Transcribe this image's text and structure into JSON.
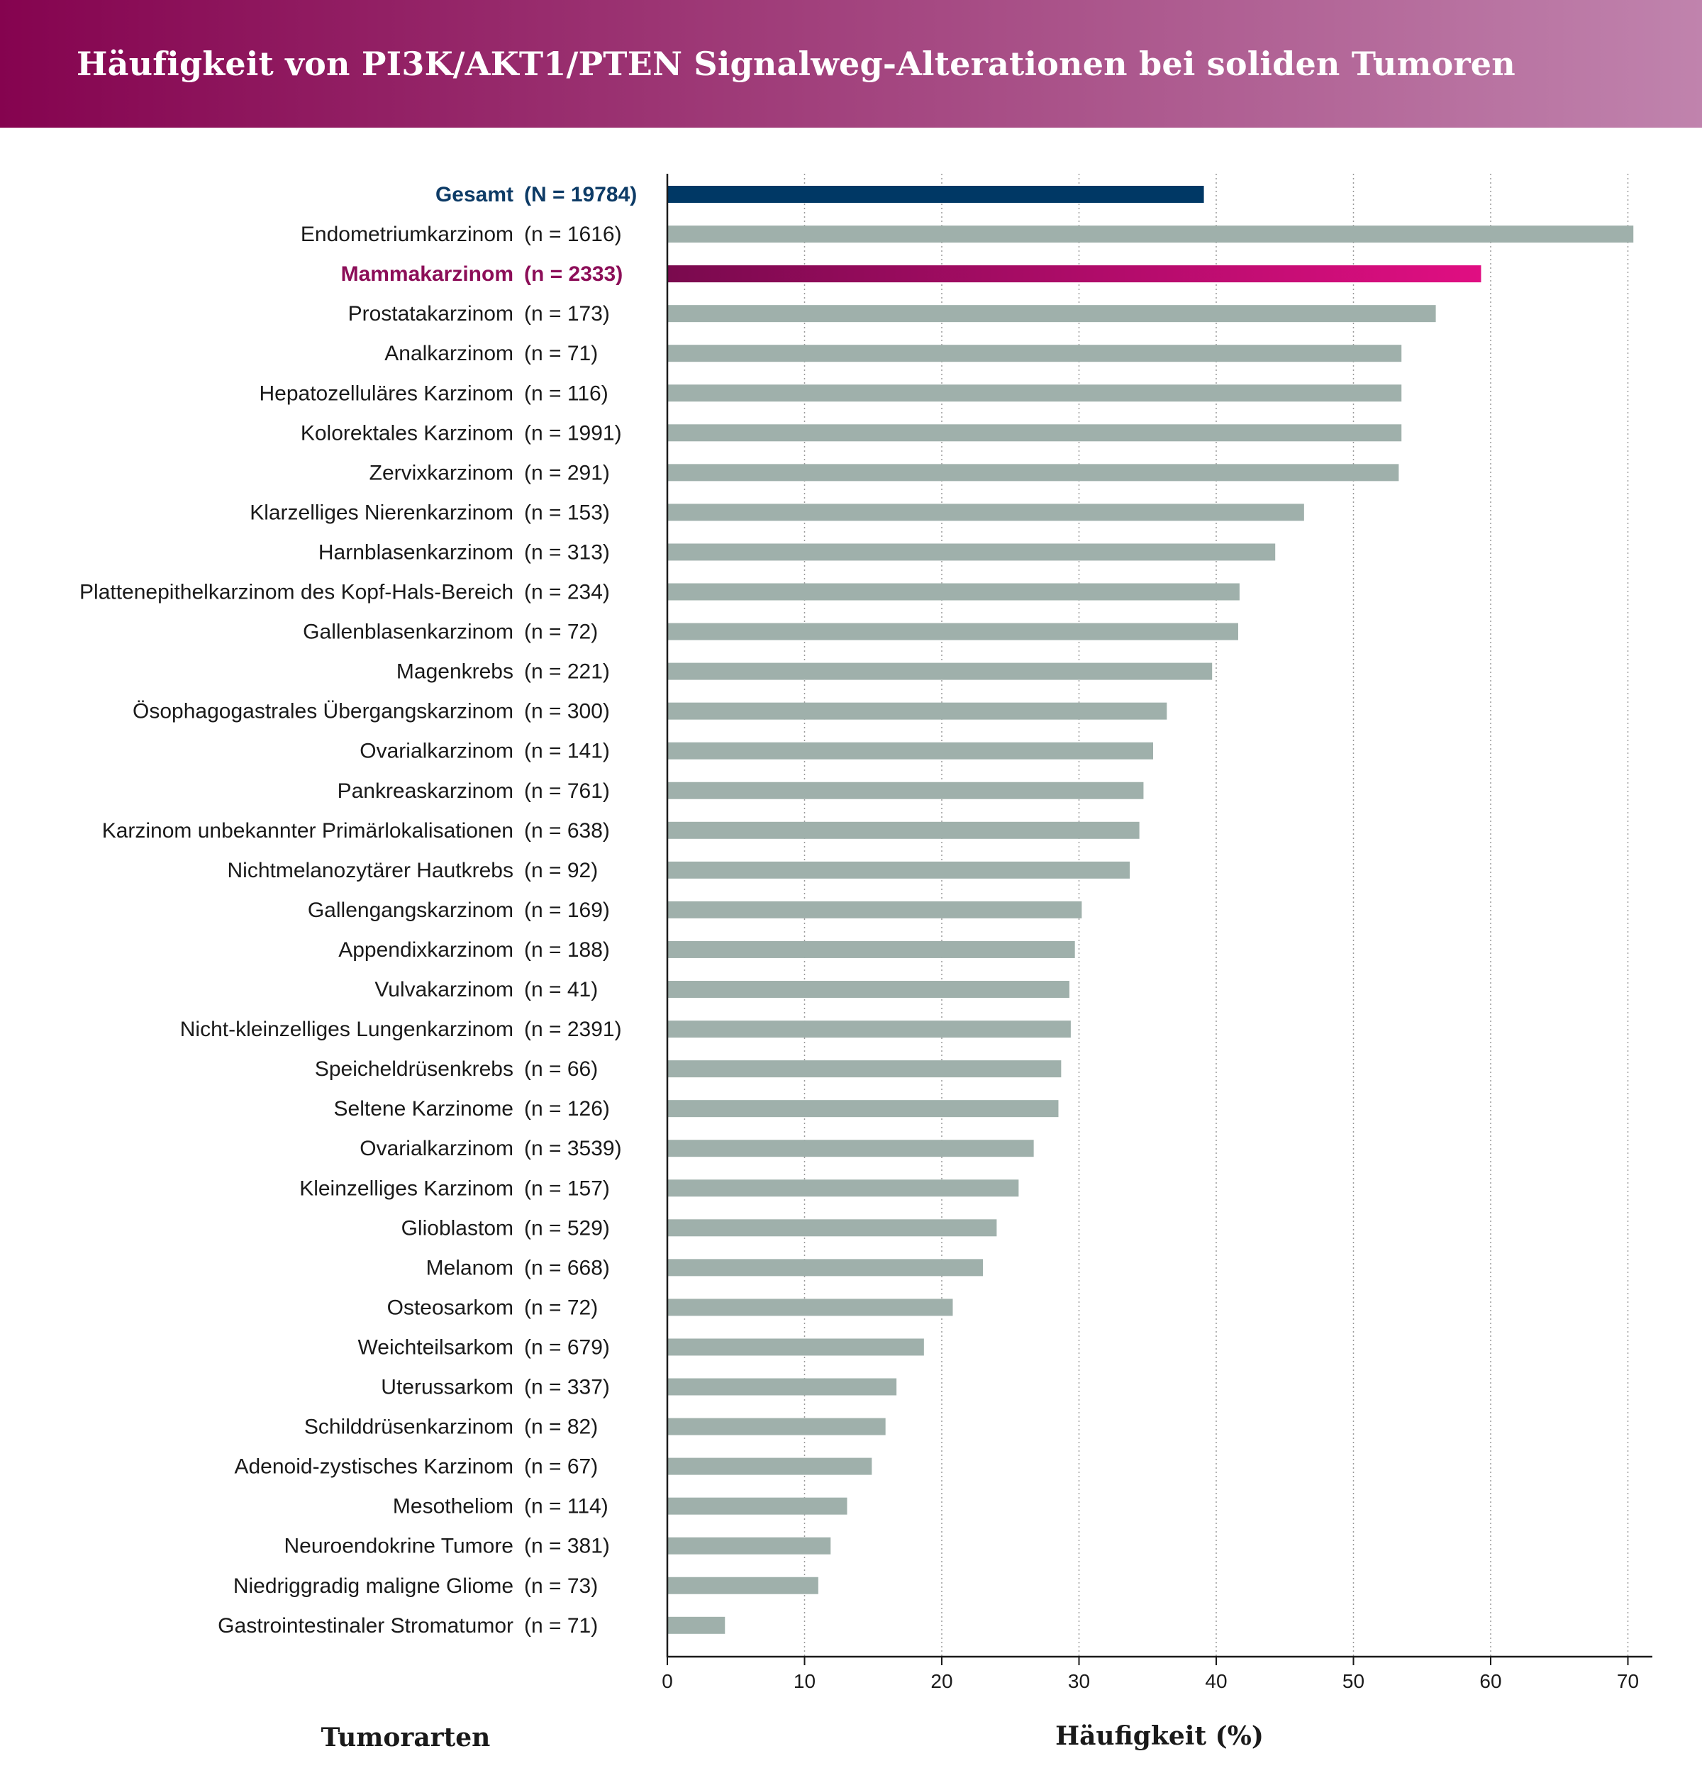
{
  "header": {
    "title": "Häufigkeit von PI3K/AKT1/PTEN Signalweg-Alterationen bei soliden Tumoren",
    "gradient_start": "#85034f",
    "gradient_end": "#c083ad"
  },
  "colors": {
    "total_bar": "#003865",
    "total_text": "#0d3b66",
    "highlight_bar_start": "#7a0a4e",
    "highlight_bar_end": "#e00e82",
    "highlight_text": "#8c0e58",
    "default_bar": "#9fb0ab",
    "grid": "#9a9a9a",
    "axis": "#1a1a1a"
  },
  "chart_data": {
    "type": "bar",
    "orientation": "horizontal",
    "title": "Häufigkeit von PI3K/AKT1/PTEN Signalweg-Alterationen bei soliden Tumoren",
    "xlabel": "Häufigkeit (%)",
    "ylabel": "Tumorarten",
    "xlim": [
      0,
      72
    ],
    "xticks": [
      0,
      10,
      20,
      30,
      40,
      50,
      60,
      70
    ],
    "grid": "vertical dotted",
    "categories": [
      "Gesamt",
      "Endometriumkarzinom",
      "Mammakarzinom",
      "Prostatakarzinom",
      "Analkarzinom",
      "Hepatozelluläres Karzinom",
      "Kolorektales Karzinom",
      "Zervixkarzinom",
      "Klarzelliges Nierenkarzinom",
      "Harnblasenkarzinom",
      "Plattenepithelkarzinom des Kopf-Hals-Bereich",
      "Gallenblasenkarzinom",
      "Magenkrebs",
      "Ösophagogastrales Übergangskarzinom",
      "Ovarialkarzinom",
      "Pankreaskarzinom",
      "Karzinom unbekannter Primärlokalisationen",
      "Nichtmelanozytärer Hautkrebs",
      "Gallengangskarzinom",
      "Appendixkarzinom",
      "Vulvakarzinom",
      "Nicht-kleinzelliges Lungenkarzinom",
      "Speicheldrüsenkrebs",
      "Seltene Karzinome",
      "Ovarialkarzinom",
      "Kleinzelliges Karzinom",
      "Glioblastom",
      "Melanom",
      "Osteosarkom",
      "Weichteilsarkom",
      "Uterussarkom",
      "Schilddrüsenkarzinom",
      "Adenoid-zystisches Karzinom",
      "Mesotheliom",
      "Neuroendokrine Tumore",
      "Niedriggradig maligne Gliome",
      "Gastrointestinaler Stromatumor"
    ],
    "n_labels": [
      "(N = 19784)",
      "(n = 1616)",
      "(n = 2333)",
      "(n = 173)",
      "(n = 71)",
      "(n = 116)",
      "(n = 1991)",
      "(n = 291)",
      "(n = 153)",
      "(n = 313)",
      "(n = 234)",
      "(n = 72)",
      "(n = 221)",
      "(n = 300)",
      "(n = 141)",
      "(n = 761)",
      "(n = 638)",
      "(n = 92)",
      "(n = 169)",
      "(n = 188)",
      "(n = 41)",
      "(n = 2391)",
      "(n = 66)",
      "(n = 126)",
      "(n = 3539)",
      "(n = 157)",
      "(n = 529)",
      "(n = 668)",
      "(n = 72)",
      "(n = 679)",
      "(n = 337)",
      "(n = 82)",
      "(n = 67)",
      "(n = 114)",
      "(n = 381)",
      "(n = 73)",
      "(n = 71)"
    ],
    "values": [
      39.1,
      70.4,
      59.3,
      56.0,
      53.5,
      53.5,
      53.5,
      53.3,
      46.4,
      44.3,
      41.7,
      41.6,
      39.7,
      36.4,
      35.4,
      34.7,
      34.4,
      33.7,
      30.2,
      29.7,
      29.3,
      29.4,
      28.7,
      28.5,
      26.7,
      25.6,
      24.0,
      23.0,
      20.8,
      18.7,
      16.7,
      15.9,
      14.9,
      13.1,
      11.9,
      11.0,
      4.2
    ],
    "highlight": {
      "total_index": 0,
      "featured_index": 2
    }
  }
}
